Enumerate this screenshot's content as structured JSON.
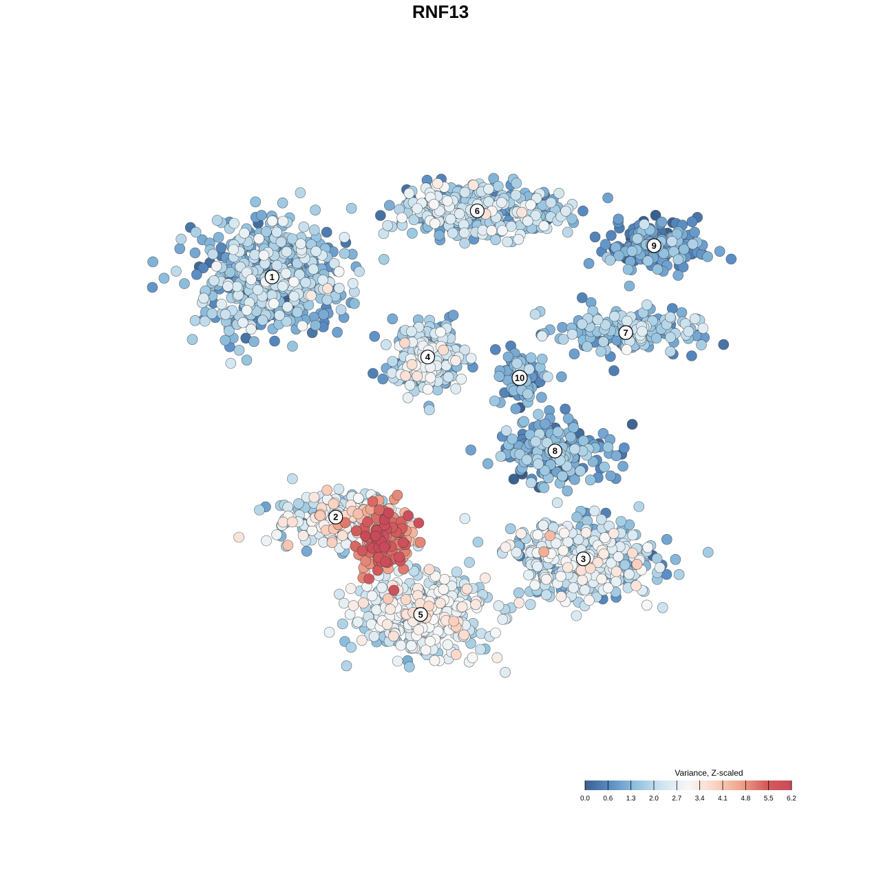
{
  "chart_data": {
    "type": "scatter",
    "title": "RNF13",
    "legend": {
      "title": "Variance, Z-scaled",
      "placement": "bottom-right",
      "ticks": [
        "0.0",
        "0.6",
        "1.3",
        "2.0",
        "2.7",
        "3.4",
        "4.1",
        "4.8",
        "5.5",
        "6.2"
      ],
      "range": [
        0.0,
        6.2
      ],
      "colors": [
        "#3b5f8f",
        "#5b8fc6",
        "#92c2df",
        "#d1e5f0",
        "#f7f7f7",
        "#fbd5c5",
        "#f0a58c",
        "#d45c5c",
        "#c9495a"
      ]
    },
    "x_range": [
      -45,
      45
    ],
    "y_range": [
      -45,
      45
    ],
    "clusters": [
      {
        "label": "1",
        "x": -26,
        "y": 23.5,
        "mean": 1.5,
        "sd": 0.7,
        "spread": [
          9,
          7.5
        ],
        "n": 520
      },
      {
        "label": "2",
        "x": -17,
        "y": -11,
        "mean": 2.4,
        "sd": 0.8,
        "spread": [
          7.5,
          3.5
        ],
        "n": 230
      },
      {
        "label": "3",
        "x": 18,
        "y": -17,
        "mean": 2.0,
        "sd": 0.7,
        "spread": [
          9,
          5
        ],
        "n": 420
      },
      {
        "label": "4",
        "x": -4,
        "y": 12,
        "mean": 1.9,
        "sd": 0.7,
        "spread": [
          4.5,
          4.5
        ],
        "n": 260
      },
      {
        "label": "5",
        "x": -5,
        "y": -25,
        "mean": 2.4,
        "sd": 0.6,
        "spread": [
          8.5,
          5
        ],
        "n": 470
      },
      {
        "label": "6",
        "x": 3,
        "y": 33,
        "mean": 1.8,
        "sd": 0.7,
        "spread": [
          11,
          3.5
        ],
        "n": 320
      },
      {
        "label": "7",
        "x": 24,
        "y": 15.5,
        "mean": 1.4,
        "sd": 0.6,
        "spread": [
          9,
          3
        ],
        "n": 180
      },
      {
        "label": "8",
        "x": 14,
        "y": -1.5,
        "mean": 1.1,
        "sd": 0.6,
        "spread": [
          8,
          4
        ],
        "n": 210
      },
      {
        "label": "9",
        "x": 28,
        "y": 28,
        "mean": 0.9,
        "sd": 0.5,
        "spread": [
          6,
          3.5
        ],
        "n": 170
      },
      {
        "label": "10",
        "x": 9,
        "y": 9,
        "mean": 1.0,
        "sd": 0.5,
        "spread": [
          3,
          3.5
        ],
        "n": 90
      },
      {
        "label": "",
        "x": -10,
        "y": -14,
        "mean": 5.0,
        "sd": 0.7,
        "spread": [
          3.5,
          4.5
        ],
        "n": 160
      }
    ]
  }
}
